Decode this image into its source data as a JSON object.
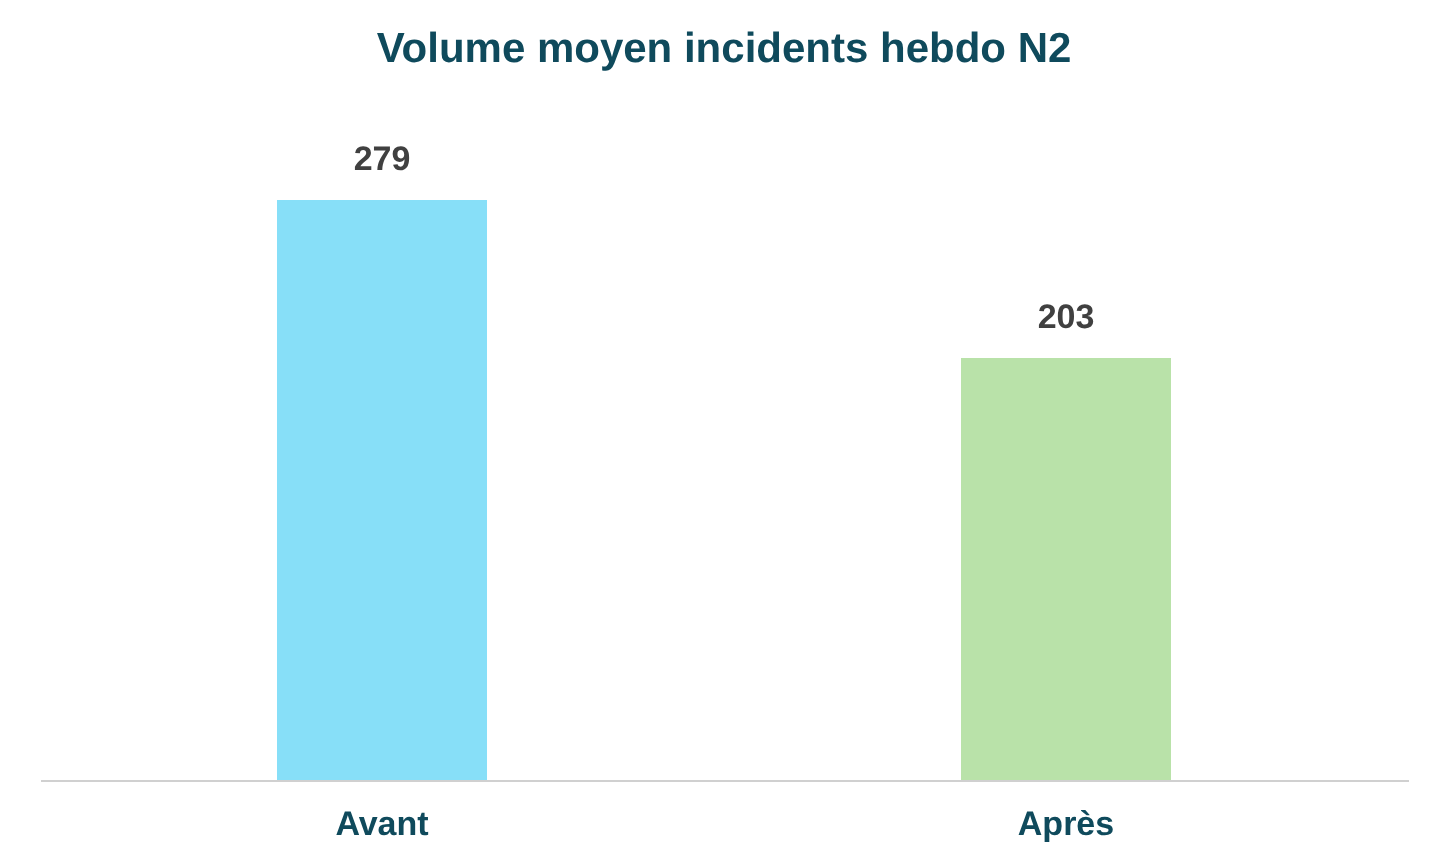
{
  "chart_data": {
    "type": "bar",
    "title": "Volume moyen incidents hebdo N2",
    "categories": [
      "Avant",
      "Après"
    ],
    "values": [
      279,
      203
    ],
    "colors": [
      "#87dff8",
      "#b9e2a9"
    ],
    "data_labels": true
  }
}
